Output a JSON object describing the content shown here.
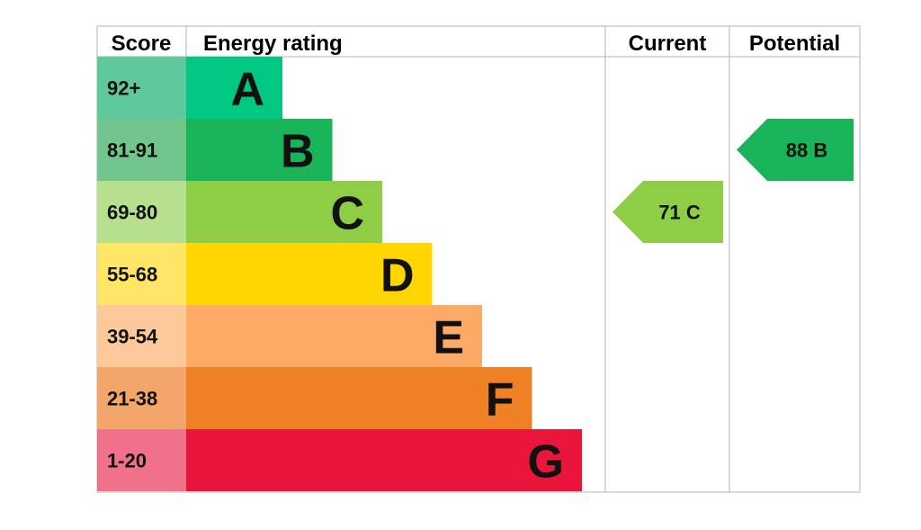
{
  "chart_data": {
    "type": "table",
    "headers": {
      "score": "Score",
      "rating": "Energy rating",
      "current": "Current",
      "potential": "Potential"
    },
    "bands": [
      {
        "score": "92+",
        "letter": "A",
        "color": "#00c781",
        "score_color": "#5fc99d"
      },
      {
        "score": "81-91",
        "letter": "B",
        "color": "#19b459",
        "score_color": "#72c58d"
      },
      {
        "score": "69-80",
        "letter": "C",
        "color": "#8dce46",
        "score_color": "#b6df8e"
      },
      {
        "score": "55-68",
        "letter": "D",
        "color": "#ffd500",
        "score_color": "#ffe566"
      },
      {
        "score": "39-54",
        "letter": "E",
        "color": "#fcaa65",
        "score_color": "#fdc89a"
      },
      {
        "score": "21-38",
        "letter": "F",
        "color": "#ef8023",
        "score_color": "#f3a66a"
      },
      {
        "score": "1-20",
        "letter": "G",
        "color": "#e9153b",
        "score_color": "#f0728a"
      }
    ],
    "current": {
      "value": 71,
      "letter": "C",
      "label": "71  C",
      "band": "C",
      "color": "#8dce46"
    },
    "potential": {
      "value": 88,
      "letter": "B",
      "label": "88  B",
      "band": "B",
      "color": "#19b459"
    }
  }
}
